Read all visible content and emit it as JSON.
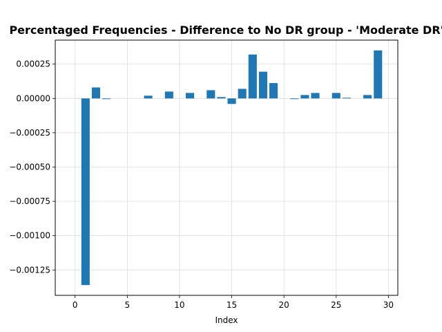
{
  "chart_data": {
    "type": "bar",
    "title": "Percentaged Frequencies - Difference to No DR group - 'Moderate DR'",
    "xlabel": "Index",
    "ylabel": "",
    "xlim": [
      -1.9,
      30.9
    ],
    "ylim": [
      -0.001435,
      0.000425
    ],
    "grid": true,
    "bar_color": "#1f77b4",
    "grid_color": "#dcdcdc",
    "x_ticks": [
      0,
      5,
      10,
      15,
      20,
      25,
      30
    ],
    "x_tick_labels": [
      "0",
      "5",
      "10",
      "15",
      "20",
      "25",
      "30"
    ],
    "y_ticks": [
      0.00025,
      0.0,
      -0.00025,
      -0.0005,
      -0.00075,
      -0.001,
      -0.00125
    ],
    "y_tick_labels": [
      "0.00025",
      "0.00000",
      "−0.00025",
      "−0.00050",
      "−0.00075",
      "−0.00100",
      "−0.00125"
    ],
    "x": [
      1,
      2,
      3,
      7,
      9,
      11,
      13,
      14,
      15,
      16,
      17,
      18,
      19,
      21,
      22,
      23,
      25,
      26,
      28,
      29
    ],
    "values": [
      -0.00136,
      8e-05,
      -5e-06,
      2e-05,
      5e-05,
      4e-05,
      6e-05,
      1e-05,
      -4e-05,
      7e-05,
      0.00032,
      0.000195,
      0.000112,
      -5e-06,
      2.5e-05,
      4e-05,
      4e-05,
      5e-06,
      2.5e-05,
      0.00035
    ]
  }
}
